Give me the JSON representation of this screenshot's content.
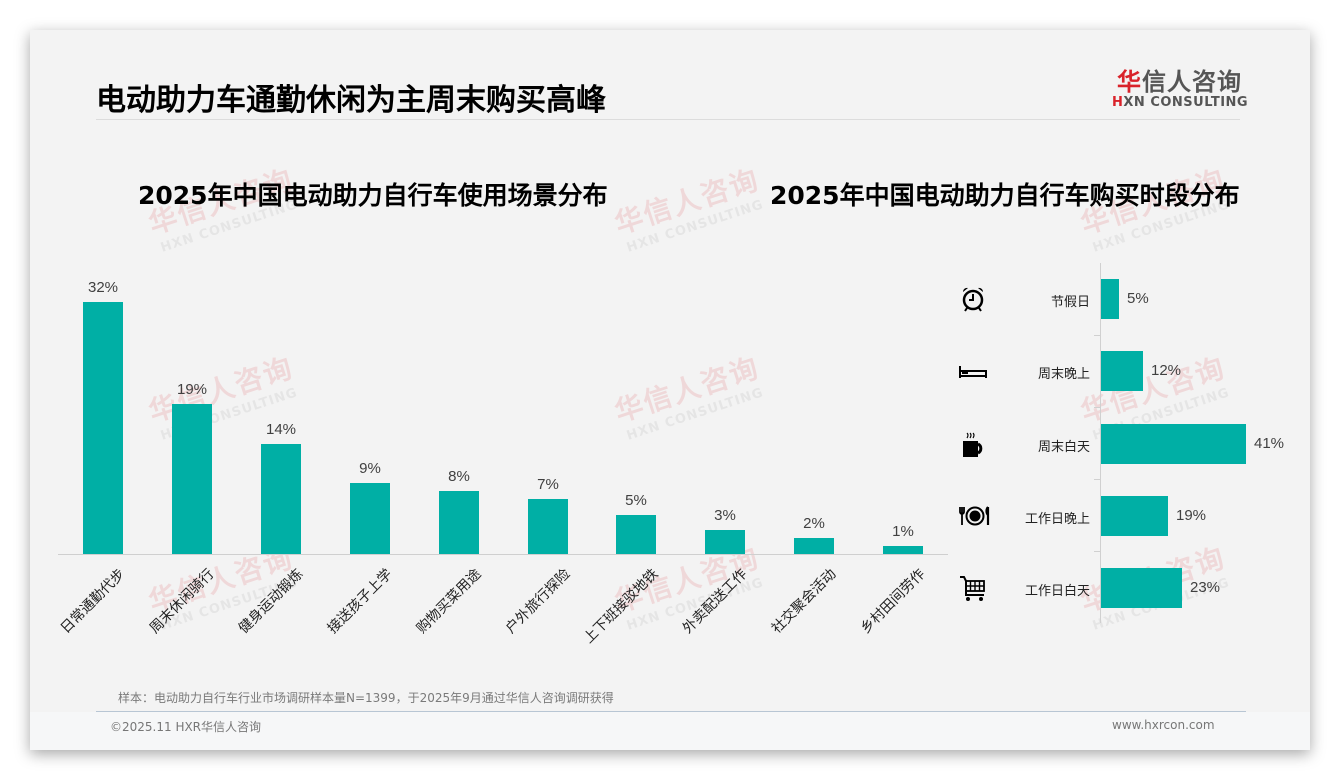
{
  "page": {
    "title": "电动助力车通勤休闲为主周末购买高峰",
    "logo": {
      "cn_brand_red": "华",
      "cn_brand_rest": "信人咨询",
      "en_prefix": "H",
      "en_rest": "XN CONSULTING"
    },
    "watermark": {
      "cn": "华信人咨询",
      "en": "HXN CONSULTING"
    },
    "note": "样本：电动助力自行车行业市场调研样本量N=1399，于2025年9月通过华信人咨询调研获得",
    "copyright": "©2025.11 HXR华信人咨询",
    "website": "www.hxrcon.com"
  },
  "colors": {
    "bar": "#00afa5",
    "brand_red": "#d9222a",
    "background": "#f3f3f3"
  },
  "left_chart": {
    "title": "2025年中国电动助力自行车使用场景分布",
    "labels": [
      "32%",
      "19%",
      "14%",
      "9%",
      "8%",
      "7%",
      "5%",
      "3%",
      "2%",
      "1%"
    ],
    "categories": [
      "日常通勤代步",
      "周末休闲骑行",
      "健身运动锻炼",
      "接送孩子上学",
      "购物买菜用途",
      "户外旅行探险",
      "上下班接驳地铁",
      "外卖配送工作",
      "社交聚会活动",
      "乡村田间劳作"
    ]
  },
  "right_chart": {
    "title": "2025年中国电动助力自行车购买时段分布",
    "rows": [
      {
        "label": "节假日",
        "value": "5%",
        "icon": "alarm-clock-icon"
      },
      {
        "label": "周末晚上",
        "value": "12%",
        "icon": "bed-icon"
      },
      {
        "label": "周末白天",
        "value": "41%",
        "icon": "coffee-mug-icon"
      },
      {
        "label": "工作日晚上",
        "value": "19%",
        "icon": "plate-cutlery-icon"
      },
      {
        "label": "工作日白天",
        "value": "23%",
        "icon": "shopping-cart-icon"
      }
    ]
  },
  "chart_data": [
    {
      "type": "bar",
      "title": "2025年中国电动助力自行车使用场景分布",
      "categories": [
        "日常通勤代步",
        "周末休闲骑行",
        "健身运动锻炼",
        "接送孩子上学",
        "购物买菜用途",
        "户外旅行探险",
        "上下班接驳地铁",
        "外卖配送工作",
        "社交聚会活动",
        "乡村田间劳作"
      ],
      "values": [
        32,
        19,
        14,
        9,
        8,
        7,
        5,
        3,
        2,
        1
      ],
      "unit": "%",
      "xlabel": "",
      "ylabel": "",
      "ylim": [
        0,
        32
      ],
      "grid": false,
      "legend": null,
      "data_labels": true,
      "color": "#00afa5"
    },
    {
      "type": "bar",
      "orientation": "horizontal",
      "title": "2025年中国电动助力自行车购买时段分布",
      "categories": [
        "节假日",
        "周末晚上",
        "周末白天",
        "工作日晚上",
        "工作日白天"
      ],
      "values": [
        5,
        12,
        41,
        19,
        23
      ],
      "unit": "%",
      "xlabel": "",
      "ylabel": "",
      "xlim": [
        0,
        41
      ],
      "grid": false,
      "legend": null,
      "data_labels": true,
      "color": "#00afa5"
    }
  ]
}
